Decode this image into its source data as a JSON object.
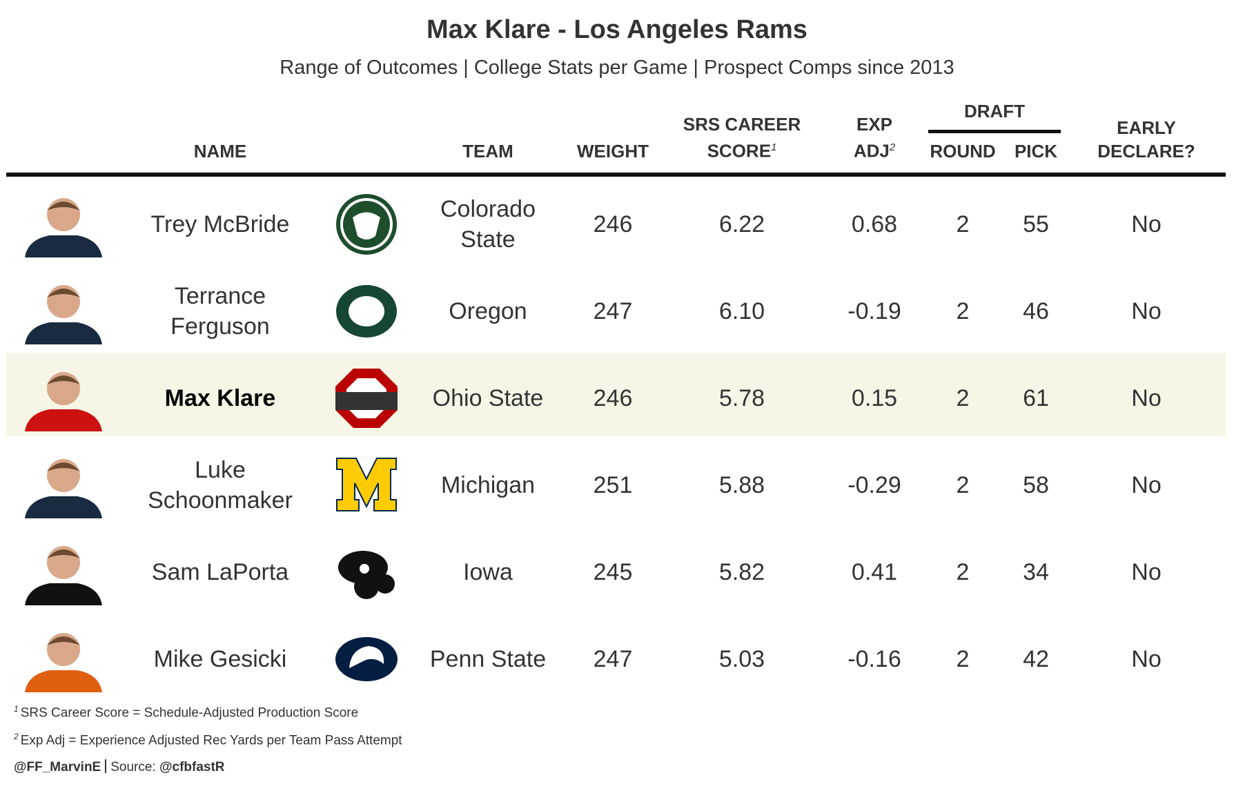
{
  "header": {
    "title": "Max Klare - Los Angeles Rams",
    "subtitle": "Range of Outcomes | College Stats per Game | Prospect Comps since 2013"
  },
  "table": {
    "group_label": "DRAFT",
    "columns": [
      {
        "label": "NAME"
      },
      {
        "label": "TEAM"
      },
      {
        "label": "WEIGHT"
      },
      {
        "label": "SRS CAREER SCORE",
        "note": "1"
      },
      {
        "label": "EXP ADJ",
        "note": "2"
      },
      {
        "label": "ROUND"
      },
      {
        "label": "PICK"
      },
      {
        "label": "EARLY DECLARE?"
      }
    ],
    "rows": [
      {
        "name": "Trey McBride",
        "team": "Colorado State",
        "weight": "246",
        "srs": "6.22",
        "exp_adj": "0.68",
        "round": "2",
        "pick": "55",
        "early_declare": "No"
      },
      {
        "name": "Terrance Ferguson",
        "team": "Oregon",
        "weight": "247",
        "srs": "6.10",
        "exp_adj": "-0.19",
        "round": "2",
        "pick": "46",
        "early_declare": "No"
      },
      {
        "name": "Max Klare",
        "team": "Ohio State",
        "weight": "246",
        "srs": "5.78",
        "exp_adj": "0.15",
        "round": "2",
        "pick": "61",
        "early_declare": "No",
        "highlight": true
      },
      {
        "name": "Luke Schoonmaker",
        "team": "Michigan",
        "weight": "251",
        "srs": "5.88",
        "exp_adj": "-0.29",
        "round": "2",
        "pick": "58",
        "early_declare": "No"
      },
      {
        "name": "Sam LaPorta",
        "team": "Iowa",
        "weight": "245",
        "srs": "5.82",
        "exp_adj": "0.41",
        "round": "2",
        "pick": "34",
        "early_declare": "No"
      },
      {
        "name": "Mike Gesicki",
        "team": "Penn State",
        "weight": "247",
        "srs": "5.03",
        "exp_adj": "-0.16",
        "round": "2",
        "pick": "42",
        "early_declare": "No"
      }
    ]
  },
  "footnotes": [
    {
      "marker": "1",
      "text": "SRS Career Score = Schedule-Adjusted Production Score"
    },
    {
      "marker": "2",
      "text": "Exp Adj = Experience Adjusted Rec Yards per Team Pass Attempt"
    }
  ],
  "credit": {
    "author": "@FF_MarvinE",
    "source_label": "Source:",
    "source": "@cfbfastR"
  }
}
